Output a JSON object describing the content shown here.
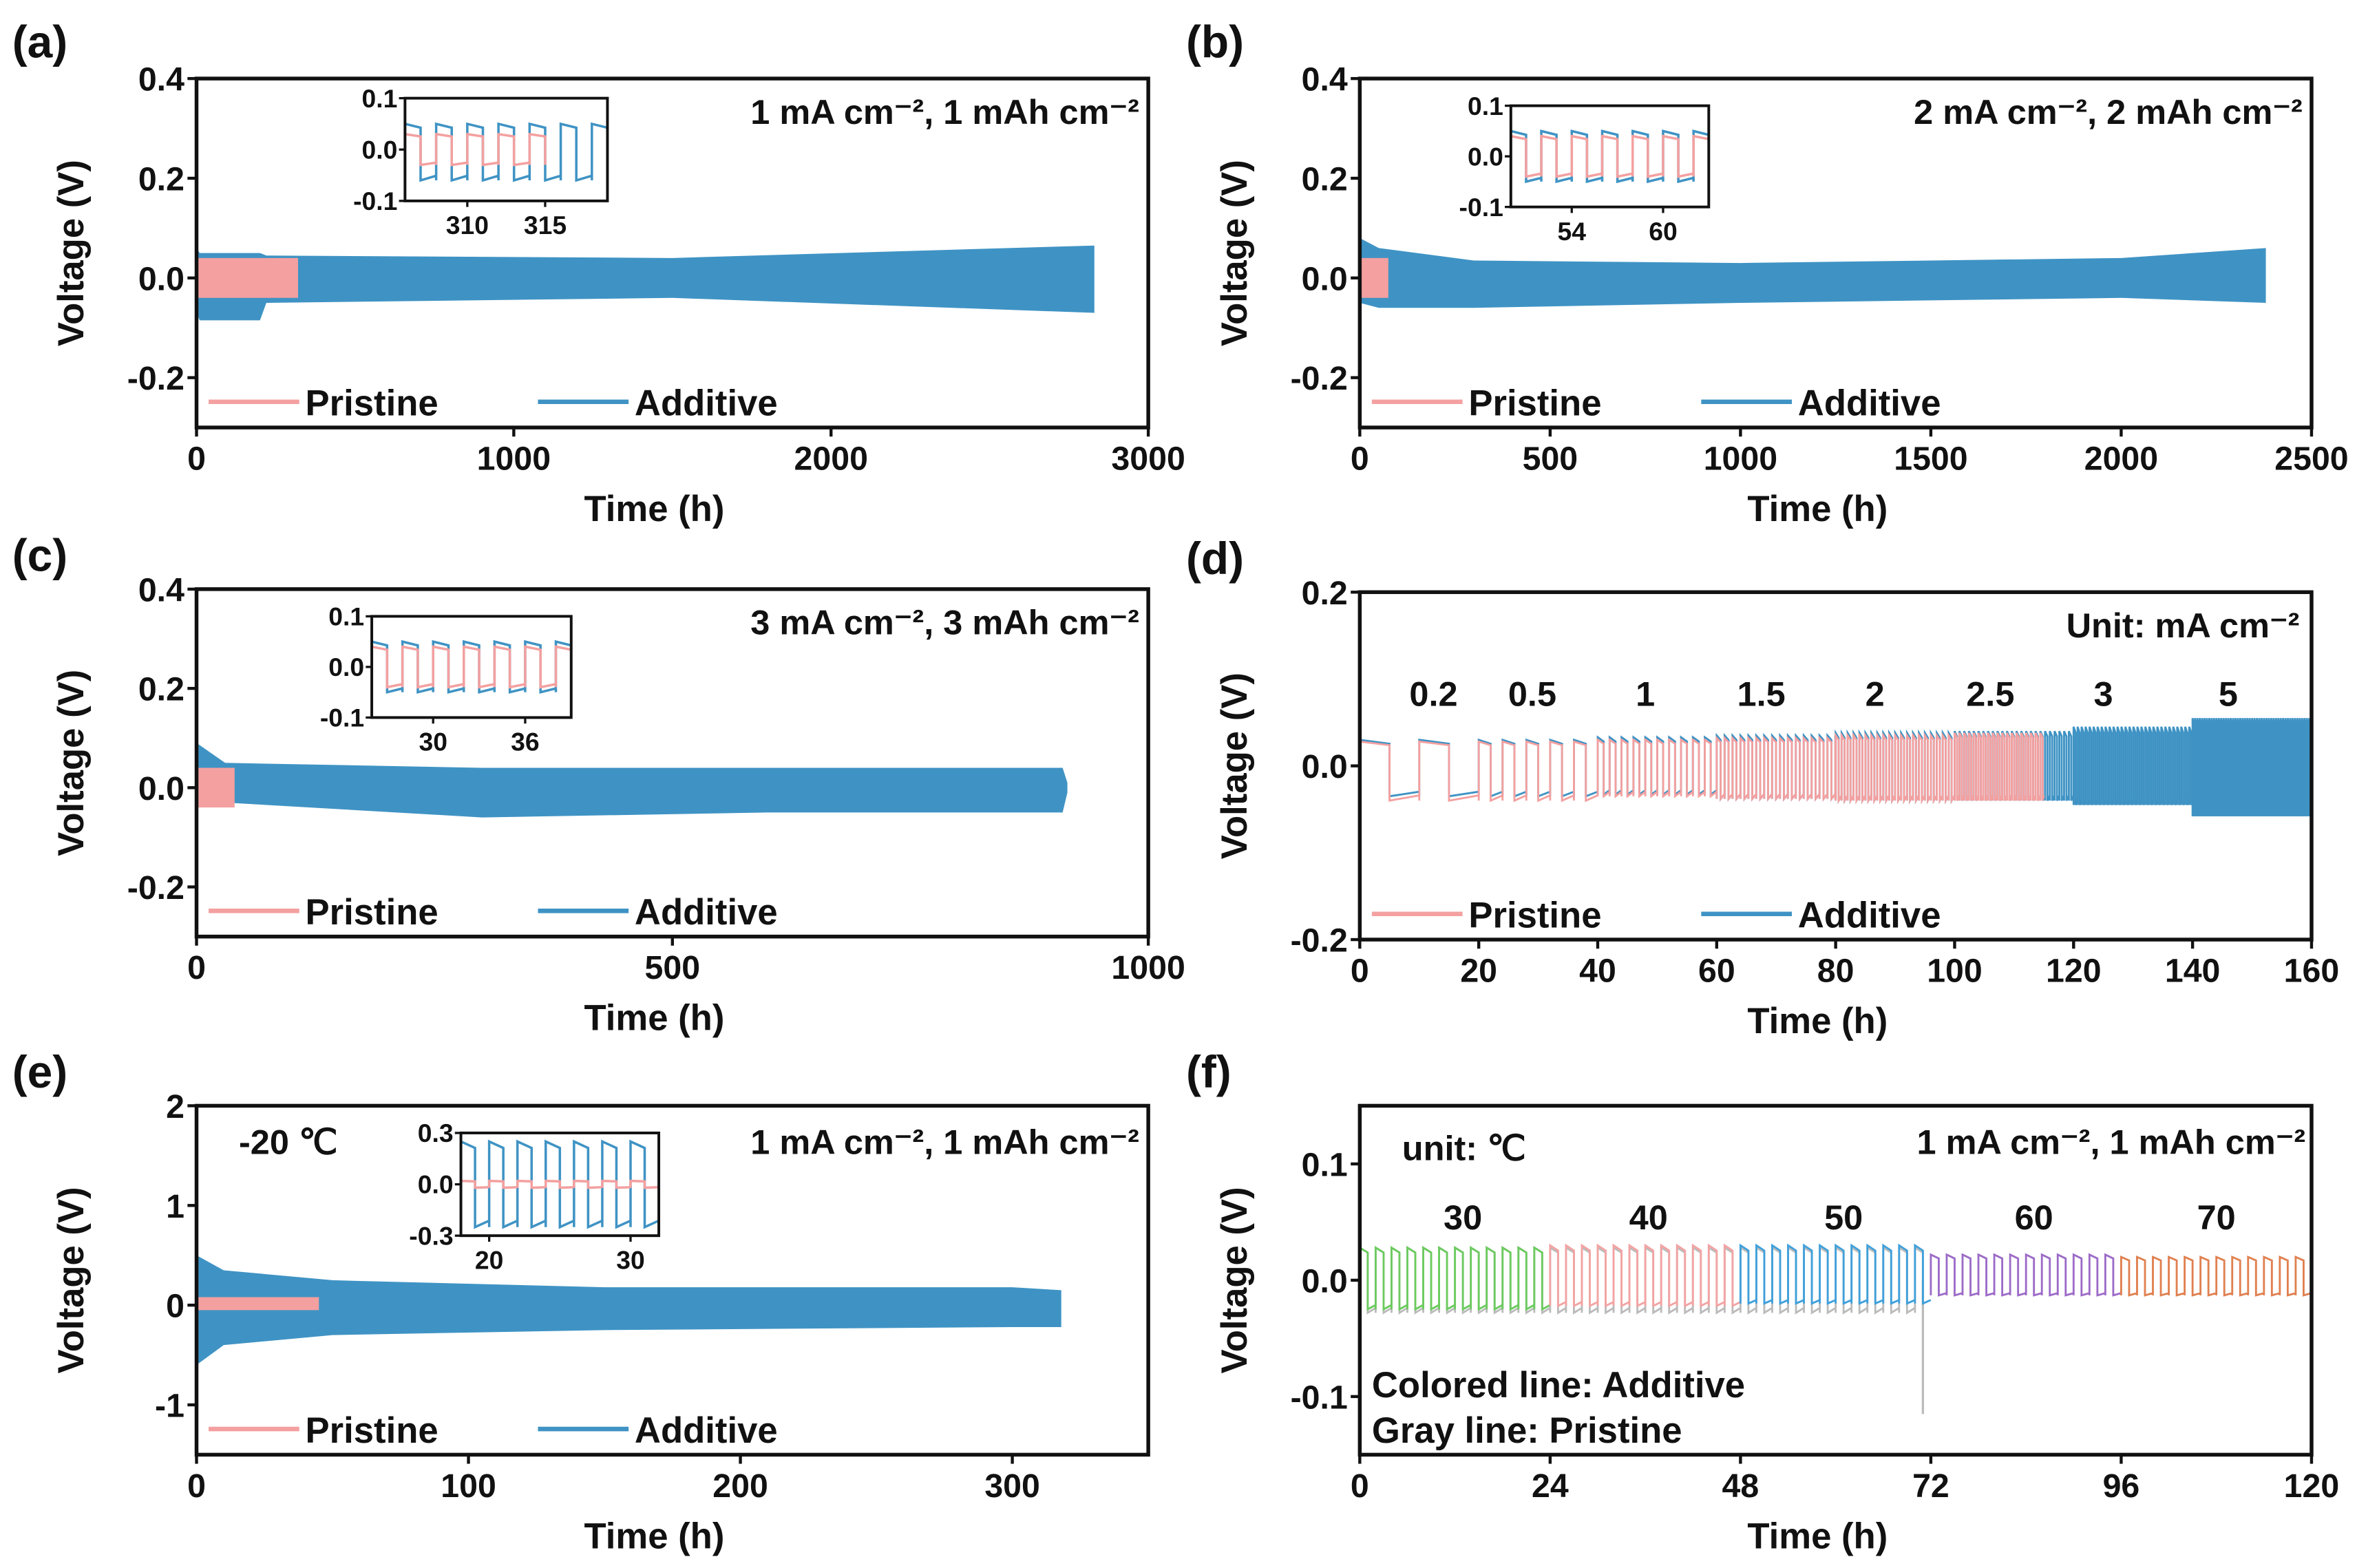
{
  "colors": {
    "pristine": "#F4A0A0",
    "additive": "#3F93C4",
    "axis": "#111111",
    "gray": "#BBBBBB"
  },
  "chart_data": [
    {
      "panel": "(a)",
      "type": "line",
      "xlabel": "Time (h)",
      "ylabel": "Voltage (V)",
      "xlim": [
        0,
        3000
      ],
      "ylim": [
        -0.3,
        0.4
      ],
      "xticks": [
        0,
        1000,
        2000,
        3000
      ],
      "xtick_labels": [
        "0",
        "1000",
        "2000",
        "3000"
      ],
      "yticks": [
        0.4,
        0.2,
        0.0,
        -0.2
      ],
      "ytick_labels": [
        "0.4",
        "0.2",
        "0.0",
        "-0.2"
      ],
      "annotations": [
        "1 mA cm⁻², 1 mAh cm⁻²"
      ],
      "legend": {
        "placement": "bottom-left",
        "entries": [
          "Pristine",
          "Additive"
        ]
      },
      "series": [
        {
          "name": "Additive",
          "color": "#3F93C4",
          "envelope": {
            "x": [
              0,
              10,
              200,
              220,
              1500,
              2830
            ],
            "upper": [
              0.06,
              0.05,
              0.05,
              0.045,
              0.04,
              0.065
            ],
            "lower": [
              -0.07,
              -0.085,
              -0.085,
              -0.05,
              -0.04,
              -0.07
            ]
          }
        },
        {
          "name": "Pristine",
          "color": "#F4A0A0",
          "envelope": {
            "x": [
              0,
              320
            ],
            "upper": [
              0.04,
              0.04
            ],
            "lower": [
              -0.04,
              -0.04
            ]
          }
        }
      ],
      "inset": {
        "xlim": [
          306,
          319
        ],
        "ylim": [
          -0.1,
          0.1
        ],
        "xticks": [
          310,
          315
        ],
        "xtick_labels": [
          "310",
          "315"
        ],
        "yticks": [
          0.1,
          0.0,
          -0.1
        ],
        "ytick_labels": [
          "0.1",
          "0.0",
          "-0.1"
        ],
        "series": [
          {
            "name": "Additive",
            "color": "#3F93C4",
            "x_range": [
              306,
              319
            ],
            "period": 2,
            "upper": 0.05,
            "lower": -0.06
          },
          {
            "name": "Pristine",
            "color": "#F4A0A0",
            "x_range": [
              306,
              315
            ],
            "period": 2,
            "upper": 0.03,
            "lower": -0.03
          }
        ]
      }
    },
    {
      "panel": "(b)",
      "type": "line",
      "xlabel": "Time (h)",
      "ylabel": "Voltage (V)",
      "xlim": [
        0,
        2500
      ],
      "ylim": [
        -0.3,
        0.4
      ],
      "xticks": [
        0,
        500,
        1000,
        1500,
        2000,
        2500
      ],
      "xtick_labels": [
        "0",
        "500",
        "1000",
        "1500",
        "2000",
        "2500"
      ],
      "yticks": [
        0.4,
        0.2,
        0.0,
        -0.2
      ],
      "ytick_labels": [
        "0.4",
        "0.2",
        "0.0",
        "-0.2"
      ],
      "annotations": [
        "2 mA cm⁻², 2 mAh cm⁻²"
      ],
      "legend": {
        "placement": "bottom-left",
        "entries": [
          "Pristine",
          "Additive"
        ]
      },
      "series": [
        {
          "name": "Additive",
          "color": "#3F93C4",
          "envelope": {
            "x": [
              0,
              50,
              300,
              1000,
              2000,
              2380
            ],
            "upper": [
              0.08,
              0.06,
              0.035,
              0.03,
              0.04,
              0.06
            ],
            "lower": [
              -0.05,
              -0.06,
              -0.06,
              -0.05,
              -0.04,
              -0.05
            ]
          }
        },
        {
          "name": "Pristine",
          "color": "#F4A0A0",
          "envelope": {
            "x": [
              0,
              75
            ],
            "upper": [
              0.04,
              0.04
            ],
            "lower": [
              -0.04,
              -0.04
            ]
          }
        }
      ],
      "inset": {
        "xlim": [
          50,
          63
        ],
        "ylim": [
          -0.1,
          0.1
        ],
        "xticks": [
          54,
          60
        ],
        "xtick_labels": [
          "54",
          "60"
        ],
        "yticks": [
          0.1,
          0.0,
          -0.1
        ],
        "ytick_labels": [
          "0.1",
          "0.0",
          "-0.1"
        ],
        "series": [
          {
            "name": "Additive",
            "color": "#3F93C4",
            "x_range": [
              50,
              63
            ],
            "period": 2,
            "upper": 0.05,
            "lower": -0.05
          },
          {
            "name": "Pristine",
            "color": "#F4A0A0",
            "x_range": [
              50,
              63
            ],
            "period": 2,
            "upper": 0.04,
            "lower": -0.04
          }
        ]
      }
    },
    {
      "panel": "(c)",
      "type": "line",
      "xlabel": "Time (h)",
      "ylabel": "Voltage (V)",
      "xlim": [
        0,
        1000
      ],
      "ylim": [
        -0.3,
        0.4
      ],
      "xticks": [
        0,
        500,
        1000
      ],
      "xtick_labels": [
        "0",
        "500",
        "1000"
      ],
      "yticks": [
        0.4,
        0.2,
        0.0,
        -0.2
      ],
      "ytick_labels": [
        "0.4",
        "0.2",
        "0.0",
        "-0.2"
      ],
      "annotations": [
        "3 mA cm⁻², 3 mAh cm⁻²"
      ],
      "legend": {
        "placement": "bottom-left",
        "entries": [
          "Pristine",
          "Additive"
        ]
      },
      "series": [
        {
          "name": "Additive",
          "color": "#3F93C4",
          "envelope": {
            "x": [
              0,
              30,
              300,
              600,
              910,
              915
            ],
            "upper": [
              0.09,
              0.05,
              0.04,
              0.04,
              0.04,
              0.01
            ],
            "lower": [
              -0.04,
              -0.03,
              -0.06,
              -0.05,
              -0.05,
              -0.01
            ]
          }
        },
        {
          "name": "Pristine",
          "color": "#F4A0A0",
          "envelope": {
            "x": [
              0,
              40
            ],
            "upper": [
              0.04,
              0.04
            ],
            "lower": [
              -0.04,
              -0.04
            ]
          }
        }
      ],
      "inset": {
        "xlim": [
          26,
          39
        ],
        "ylim": [
          -0.1,
          0.1
        ],
        "xticks": [
          30,
          36
        ],
        "xtick_labels": [
          "30",
          "36"
        ],
        "yticks": [
          0.1,
          0.0,
          -0.1
        ],
        "ytick_labels": [
          "0.1",
          "0.0",
          "-0.1"
        ],
        "series": [
          {
            "name": "Additive",
            "color": "#3F93C4",
            "x_range": [
              26,
              39
            ],
            "period": 2,
            "upper": 0.05,
            "lower": -0.05
          },
          {
            "name": "Pristine",
            "color": "#F4A0A0",
            "x_range": [
              26,
              39
            ],
            "period": 2,
            "upper": 0.04,
            "lower": -0.04
          }
        ]
      }
    },
    {
      "panel": "(d)",
      "type": "line",
      "xlabel": "Time (h)",
      "ylabel": "Voltage (V)",
      "xlim": [
        0,
        160
      ],
      "ylim": [
        -0.2,
        0.2
      ],
      "xticks": [
        0,
        20,
        40,
        60,
        80,
        100,
        120,
        140,
        160
      ],
      "xtick_labels": [
        "0",
        "20",
        "40",
        "60",
        "80",
        "100",
        "120",
        "140",
        "160"
      ],
      "yticks": [
        0.2,
        0.0,
        -0.2
      ],
      "ytick_labels": [
        "0.2",
        "0.0",
        "-0.2"
      ],
      "annotations": [
        "Unit:  mA cm⁻²"
      ],
      "rate_labels": [
        "0.2",
        "0.5",
        "1",
        "1.5",
        "2",
        "2.5",
        "3",
        "5"
      ],
      "legend": {
        "placement": "bottom-left",
        "entries": [
          "Pristine",
          "Additive"
        ]
      },
      "series": [
        {
          "name": "Additive",
          "color": "#3F93C4",
          "segments": [
            {
              "x_range": [
                0,
                20
              ],
              "period": 10,
              "upper": 0.03,
              "lower": -0.035
            },
            {
              "x_range": [
                20,
                40
              ],
              "period": 4,
              "upper": 0.03,
              "lower": -0.035
            },
            {
              "x_range": [
                40,
                60
              ],
              "period": 2,
              "upper": 0.033,
              "lower": -0.033
            },
            {
              "x_range": [
                60,
                80
              ],
              "period": 1.33,
              "upper": 0.035,
              "lower": -0.038
            },
            {
              "x_range": [
                80,
                100
              ],
              "period": 1,
              "upper": 0.038,
              "lower": -0.04
            },
            {
              "x_range": [
                100,
                120
              ],
              "period": 0.8,
              "upper": 0.04,
              "lower": -0.04
            },
            {
              "x_range": [
                120,
                140
              ],
              "period": 0.67,
              "upper": 0.045,
              "lower": -0.045
            },
            {
              "x_range": [
                140,
                160
              ],
              "period": 0.4,
              "upper": 0.055,
              "lower": -0.058
            }
          ]
        },
        {
          "name": "Pristine",
          "color": "#F4A0A0",
          "segments": [
            {
              "x_range": [
                0,
                20
              ],
              "period": 10,
              "upper": 0.028,
              "lower": -0.04
            },
            {
              "x_range": [
                20,
                40
              ],
              "period": 4,
              "upper": 0.028,
              "lower": -0.04
            },
            {
              "x_range": [
                40,
                60
              ],
              "period": 2,
              "upper": 0.03,
              "lower": -0.035
            },
            {
              "x_range": [
                60,
                80
              ],
              "period": 1.33,
              "upper": 0.032,
              "lower": -0.038
            },
            {
              "x_range": [
                80,
                100
              ],
              "period": 1,
              "upper": 0.035,
              "lower": -0.04
            },
            {
              "x_range": [
                100,
                115
              ],
              "period": 0.8,
              "upper": 0.038,
              "lower": -0.04
            }
          ]
        }
      ]
    },
    {
      "panel": "(e)",
      "type": "line",
      "xlabel": "Time (h)",
      "ylabel": "Voltage (V)",
      "xlim": [
        0,
        350
      ],
      "ylim": [
        -1.5,
        2
      ],
      "xticks": [
        0,
        100,
        200,
        300
      ],
      "xtick_labels": [
        "0",
        "100",
        "200",
        "300"
      ],
      "yticks": [
        2,
        1,
        0,
        -1
      ],
      "ytick_labels": [
        "2",
        "1",
        "0",
        "-1"
      ],
      "annotations": [
        "-20 ℃",
        "1 mA cm⁻², 1 mAh cm⁻²"
      ],
      "legend": {
        "placement": "bottom-left",
        "entries": [
          "Pristine",
          "Additive"
        ]
      },
      "series": [
        {
          "name": "Additive",
          "color": "#3F93C4",
          "envelope": {
            "x": [
              0,
              10,
              50,
              150,
              300,
              318
            ],
            "upper": [
              0.5,
              0.35,
              0.25,
              0.18,
              0.18,
              0.15
            ],
            "lower": [
              -0.6,
              -0.4,
              -0.3,
              -0.25,
              -0.22,
              -0.22
            ]
          }
        },
        {
          "name": "Pristine",
          "color": "#F4A0A0",
          "envelope": {
            "x": [
              0,
              45
            ],
            "upper": [
              0.08,
              0.08
            ],
            "lower": [
              -0.05,
              -0.05
            ]
          }
        }
      ],
      "inset": {
        "xlim": [
          18,
          32
        ],
        "ylim": [
          -0.3,
          0.3
        ],
        "xticks": [
          20,
          30
        ],
        "xtick_labels": [
          "20",
          "30"
        ],
        "yticks": [
          0.3,
          0.0,
          -0.3
        ],
        "ytick_labels": [
          "0.3",
          "0.0",
          "-0.3"
        ],
        "series": [
          {
            "name": "Additive",
            "color": "#3F93C4",
            "x_range": [
              18,
              32
            ],
            "period": 2,
            "upper": 0.25,
            "lower": -0.25
          },
          {
            "name": "Pristine",
            "color": "#F4A0A0",
            "x_range": [
              18,
              32
            ],
            "period": 2,
            "upper": 0.02,
            "lower": -0.02
          }
        ]
      }
    },
    {
      "panel": "(f)",
      "type": "line",
      "xlabel": "Time (h)",
      "ylabel": "Voltage (V)",
      "xlim": [
        0,
        120
      ],
      "ylim": [
        -0.15,
        0.15
      ],
      "xticks": [
        0,
        24,
        48,
        72,
        96,
        120
      ],
      "xtick_labels": [
        "0",
        "24",
        "48",
        "72",
        "96",
        "120"
      ],
      "yticks": [
        0.1,
        0.0,
        -0.1
      ],
      "ytick_labels": [
        "0.1",
        "0.0",
        "-0.1"
      ],
      "annotations": [
        "unit: ℃",
        "1 mA cm⁻², 1 mAh cm⁻²",
        "Colored line: Additive",
        "Gray line: Pristine"
      ],
      "temperature_labels": [
        "30",
        "40",
        "50",
        "60",
        "70"
      ],
      "series": [
        {
          "name": "Pristine",
          "color": "#BBBBBB",
          "segments": [
            {
              "x_range": [
                0,
                71
              ],
              "period": 2,
              "upper": 0.028,
              "lower": -0.028
            }
          ],
          "spike": {
            "x": 71,
            "y": -0.115
          }
        },
        {
          "name": "Additive",
          "color": "#6CCB5F",
          "segments": [
            {
              "x_range": [
                0,
                24
              ],
              "period": 2,
              "upper": 0.028,
              "lower": -0.025
            }
          ]
        },
        {
          "name": "Additive",
          "color": "#F4A3A3",
          "segments": [
            {
              "x_range": [
                24,
                48
              ],
              "period": 2,
              "upper": 0.03,
              "lower": -0.022
            }
          ]
        },
        {
          "name": "Additive",
          "color": "#3FA0DB",
          "segments": [
            {
              "x_range": [
                48,
                72
              ],
              "period": 2,
              "upper": 0.03,
              "lower": -0.02
            }
          ]
        },
        {
          "name": "Additive",
          "color": "#9C6BC8",
          "segments": [
            {
              "x_range": [
                72,
                96
              ],
              "period": 2,
              "upper": 0.022,
              "lower": -0.013
            }
          ]
        },
        {
          "name": "Additive",
          "color": "#E08050",
          "segments": [
            {
              "x_range": [
                96,
                120
              ],
              "period": 2,
              "upper": 0.02,
              "lower": -0.013
            }
          ]
        }
      ]
    }
  ]
}
